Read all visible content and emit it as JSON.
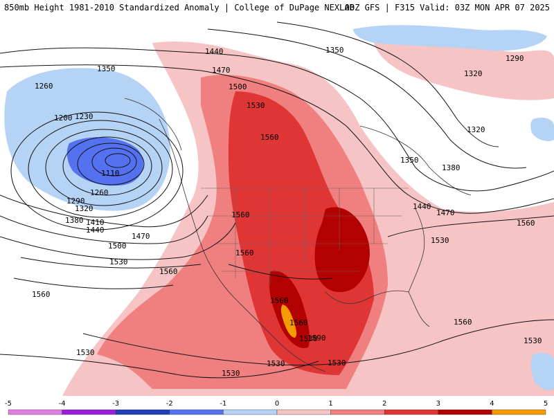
{
  "header": {
    "title": "850mb Height 1981-2010 Standardized Anomaly | College of DuPage NEXLAB",
    "run_info": "00Z GFS | F315 Valid: 03Z MON APR 07 2025"
  },
  "colorbar": {
    "ticks": [
      "-5",
      "-4",
      "-3",
      "-2",
      "-1",
      "0",
      "1",
      "2",
      "3",
      "4",
      "5"
    ],
    "colors": [
      "#e37fe3",
      "#9a1fd9",
      "#1f3fb8",
      "#5472f0",
      "#b5d3f5",
      "#ffffff",
      "#f6c4c4",
      "#f07f7f",
      "#e03535",
      "#b30000",
      "#f59a00"
    ]
  },
  "map": {
    "contour_labels": [
      "1440",
      "1350",
      "1290",
      "1260",
      "1350",
      "1230",
      "1200",
      "1110",
      "1260",
      "1290",
      "1320",
      "1380",
      "1410",
      "1440",
      "1470",
      "1500",
      "1530",
      "1470",
      "1500",
      "1530",
      "1560",
      "1560",
      "1560",
      "1560",
      "1560",
      "1560",
      "1560",
      "1530",
      "1530",
      "1530",
      "1530",
      "1530",
      "1320",
      "1320",
      "1350",
      "1380",
      "1440",
      "1470",
      "1530",
      "1560",
      "1560",
      "1530",
      "1590"
    ]
  }
}
